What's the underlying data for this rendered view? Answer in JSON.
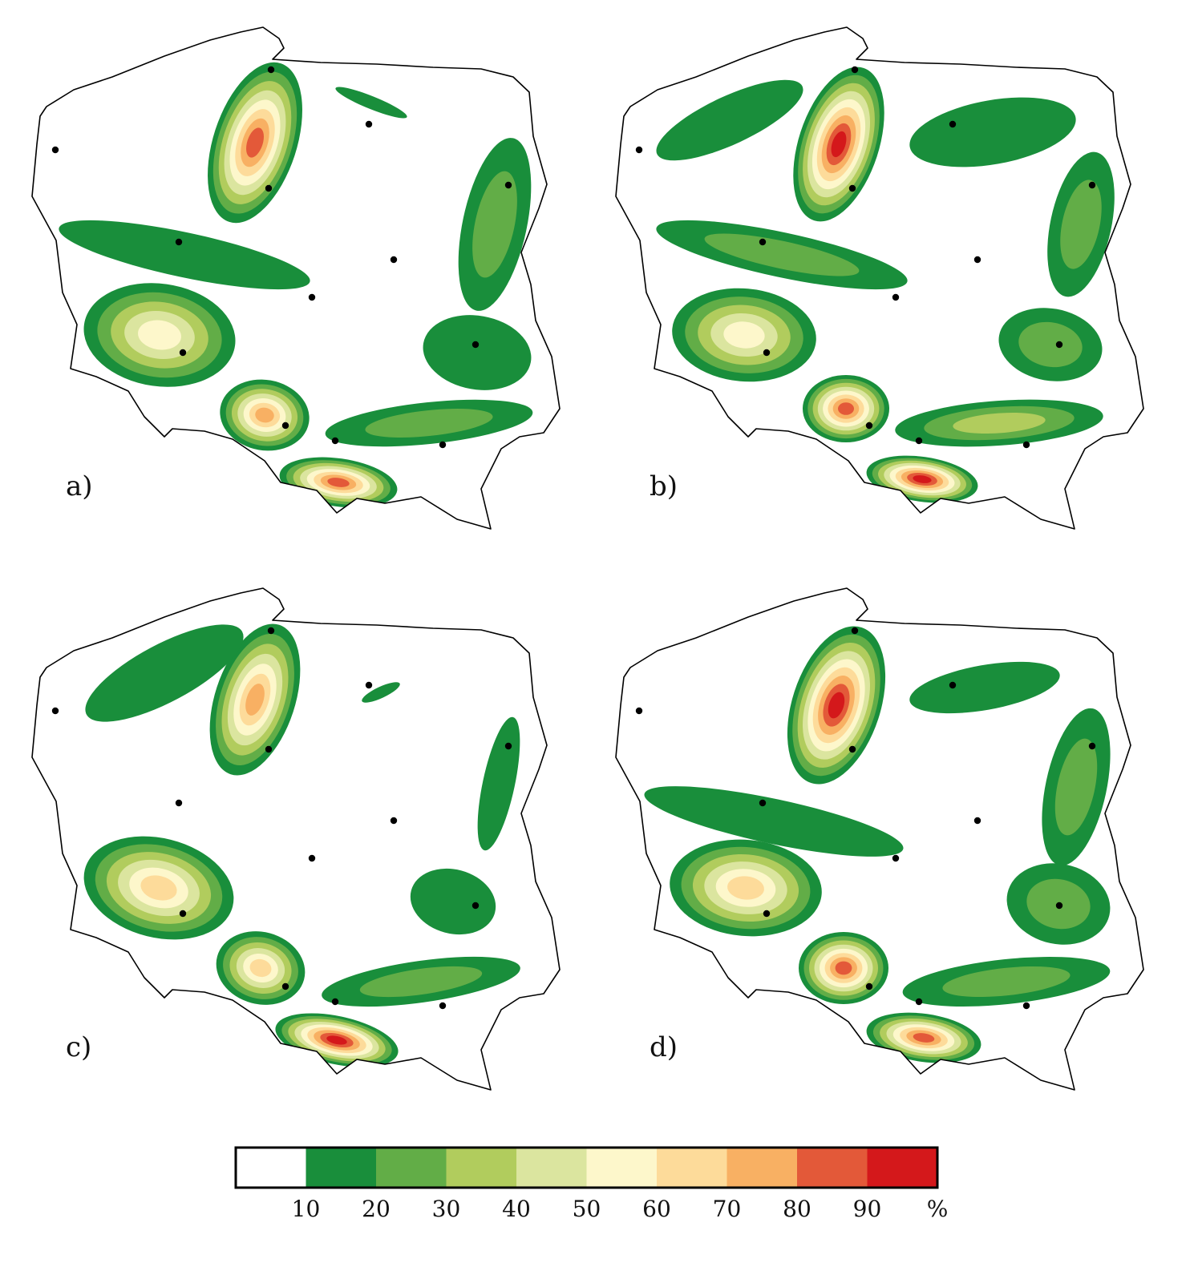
{
  "panels": [
    {
      "label": "a)",
      "blobs": [
        {
          "c": [
            318,
            178
          ],
          "r": [
            52,
            104
          ],
          "rot": 18,
          "lvl": 8
        },
        {
          "c": [
            199,
            418
          ],
          "r": [
            95,
            64
          ],
          "rot": 8,
          "lvl": 5
        },
        {
          "c": [
            330,
            518
          ],
          "r": [
            56,
            44
          ],
          "rot": 10,
          "lvl": 7
        },
        {
          "c": [
            422,
            602
          ],
          "r": [
            74,
            30
          ],
          "rot": 8,
          "lvl": 8
        },
        {
          "c": [
            230,
            318
          ],
          "r": [
            160,
            28
          ],
          "rot": 12,
          "lvl": 1
        },
        {
          "c": [
            617,
            280
          ],
          "r": [
            40,
            110
          ],
          "rot": 12,
          "lvl": 2
        },
        {
          "c": [
            595,
            440
          ],
          "r": [
            68,
            46
          ],
          "rot": 10,
          "lvl": 1
        },
        {
          "c": [
            535,
            528
          ],
          "r": [
            130,
            26
          ],
          "rot": -6,
          "lvl": 2
        },
        {
          "c": [
            463,
            128
          ],
          "r": [
            48,
            8
          ],
          "rot": 22,
          "lvl": 1
        }
      ]
    },
    {
      "label": "b)",
      "blobs": [
        {
          "c": [
            1046,
            180
          ],
          "r": [
            50,
            100
          ],
          "rot": 18,
          "lvl": 9
        },
        {
          "c": [
            928,
            418
          ],
          "r": [
            90,
            58
          ],
          "rot": 5,
          "lvl": 5
        },
        {
          "c": [
            1055,
            510
          ],
          "r": [
            54,
            42
          ],
          "rot": 0,
          "lvl": 8
        },
        {
          "c": [
            1150,
            598
          ],
          "r": [
            70,
            28
          ],
          "rot": 8,
          "lvl": 9
        },
        {
          "c": [
            975,
            318
          ],
          "r": [
            160,
            28
          ],
          "rot": 12,
          "lvl": 2
        },
        {
          "c": [
            910,
            150
          ],
          "r": [
            100,
            30
          ],
          "rot": -25,
          "lvl": 1
        },
        {
          "c": [
            1238,
            165
          ],
          "r": [
            105,
            40
          ],
          "rot": -10,
          "lvl": 1
        },
        {
          "c": [
            1348,
            280
          ],
          "r": [
            38,
            92
          ],
          "rot": 12,
          "lvl": 2
        },
        {
          "c": [
            1310,
            430
          ],
          "r": [
            65,
            45
          ],
          "rot": 10,
          "lvl": 2
        },
        {
          "c": [
            1246,
            528
          ],
          "r": [
            130,
            28
          ],
          "rot": -4,
          "lvl": 3
        }
      ]
    },
    {
      "label": "c)",
      "blobs": [
        {
          "c": [
            318,
            873
          ],
          "r": [
            50,
            98
          ],
          "rot": 18,
          "lvl": 7
        },
        {
          "c": [
            198,
            1108
          ],
          "r": [
            95,
            62
          ],
          "rot": 14,
          "lvl": 6
        },
        {
          "c": [
            325,
            1208
          ],
          "r": [
            56,
            45
          ],
          "rot": 15,
          "lvl": 6
        },
        {
          "c": [
            420,
            1298
          ],
          "r": [
            78,
            30
          ],
          "rot": 12,
          "lvl": 9
        },
        {
          "c": [
            205,
            840
          ],
          "r": [
            110,
            36
          ],
          "rot": -28,
          "lvl": 1
        },
        {
          "c": [
            622,
            978
          ],
          "r": [
            20,
            85
          ],
          "rot": 12,
          "lvl": 1
        },
        {
          "c": [
            565,
            1125
          ],
          "r": [
            54,
            40
          ],
          "rot": 15,
          "lvl": 1
        },
        {
          "c": [
            525,
            1225
          ],
          "r": [
            125,
            26
          ],
          "rot": -8,
          "lvl": 2
        },
        {
          "c": [
            475,
            864
          ],
          "r": [
            26,
            7
          ],
          "rot": -25,
          "lvl": 1
        }
      ]
    },
    {
      "label": "d)",
      "blobs": [
        {
          "c": [
            1043,
            880
          ],
          "r": [
            55,
            102
          ],
          "rot": 18,
          "lvl": 9
        },
        {
          "c": [
            930,
            1108
          ],
          "r": [
            95,
            60
          ],
          "rot": 5,
          "lvl": 6
        },
        {
          "c": [
            1052,
            1208
          ],
          "r": [
            56,
            45
          ],
          "rot": 0,
          "lvl": 8
        },
        {
          "c": [
            1152,
            1295
          ],
          "r": [
            72,
            30
          ],
          "rot": 8,
          "lvl": 8
        },
        {
          "c": [
            965,
            1025
          ],
          "r": [
            165,
            28
          ],
          "rot": 12,
          "lvl": 1
        },
        {
          "c": [
            1342,
            982
          ],
          "r": [
            38,
            100
          ],
          "rot": 12,
          "lvl": 2
        },
        {
          "c": [
            1320,
            1128
          ],
          "r": [
            65,
            50
          ],
          "rot": 12,
          "lvl": 2
        },
        {
          "c": [
            1255,
            1225
          ],
          "r": [
            130,
            28
          ],
          "rot": -6,
          "lvl": 2
        },
        {
          "c": [
            1228,
            858
          ],
          "r": [
            95,
            28
          ],
          "rot": -10,
          "lvl": 1
        }
      ]
    }
  ],
  "stations": [
    [
      338,
      87
    ],
    [
      460,
      155
    ],
    [
      69,
      187
    ],
    [
      335,
      235
    ],
    [
      634,
      231
    ],
    [
      223,
      302
    ],
    [
      491,
      324
    ],
    [
      389,
      371
    ],
    [
      228,
      440
    ],
    [
      593,
      430
    ],
    [
      356,
      531
    ],
    [
      418,
      550
    ],
    [
      552,
      555
    ]
  ],
  "legend": {
    "colors": [
      "#ffffff",
      "#198e3b",
      "#62ad47",
      "#b1cc5d",
      "#dbe59f",
      "#fdf7cb",
      "#fddb9a",
      "#f8b063",
      "#e35939",
      "#d4181b"
    ],
    "tick_labels": [
      "10",
      "20",
      "30",
      "40",
      "50",
      "60",
      "70",
      "80",
      "90",
      "%"
    ]
  }
}
